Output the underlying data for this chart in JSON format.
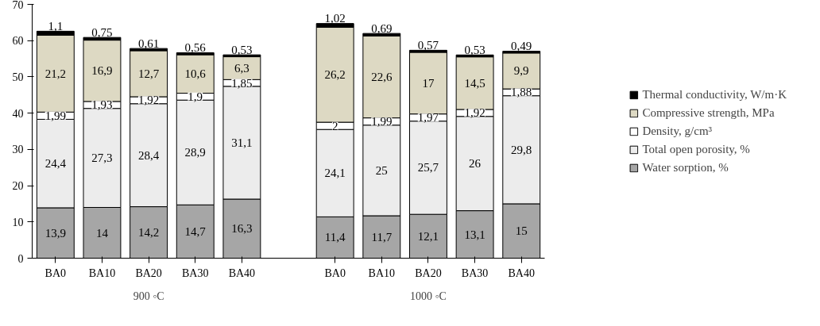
{
  "chart_data": {
    "type": "bar",
    "stacked": true,
    "legend": "right",
    "grid": false,
    "categories": [
      "BA0",
      "BA10",
      "BA20",
      "BA30",
      "BA40",
      null,
      "BA0",
      "BA10",
      "BA20",
      "BA30",
      "BA40"
    ],
    "series": [
      {
        "name": "Water sorption, %",
        "color": "#a6a6a6",
        "values": [
          13.9,
          14,
          14.2,
          14.7,
          16.3,
          null,
          11.4,
          11.7,
          12.1,
          13.1,
          15
        ],
        "value_labels": [
          "13,9",
          "14",
          "14,2",
          "14,7",
          "16,3",
          null,
          "11,4",
          "11,7",
          "12,1",
          "13,1",
          "15"
        ]
      },
      {
        "name": "Total open porosity, %",
        "color": "#ececec",
        "values": [
          24.4,
          27.3,
          28.4,
          28.9,
          31.1,
          null,
          24.1,
          25,
          25.7,
          26,
          29.8
        ],
        "value_labels": [
          "24,4",
          "27,3",
          "28,4",
          "28,9",
          "31,1",
          null,
          "24,1",
          "25",
          "25,7",
          "26",
          "29,8"
        ]
      },
      {
        "name": "Density, g/cm³",
        "color": "#ffffff",
        "values": [
          1.99,
          1.93,
          1.92,
          1.9,
          1.85,
          null,
          2,
          1.99,
          1.97,
          1.92,
          1.88
        ],
        "value_labels": [
          "1,99",
          "1,93",
          "1,92",
          "1,9",
          "1,85",
          null,
          "2",
          "1,99",
          "1,97",
          "1,92",
          "1,88"
        ]
      },
      {
        "name": "Compressive strength, MPa",
        "color": "#ddd9c3",
        "values": [
          21.2,
          16.9,
          12.7,
          10.6,
          6.3,
          null,
          26.2,
          22.6,
          17,
          14.5,
          9.9
        ],
        "value_labels": [
          "21,2",
          "16,9",
          "12,7",
          "10,6",
          "6,3",
          null,
          "26,2",
          "22,6",
          "17",
          "14,5",
          "9,9"
        ]
      },
      {
        "name": "Thermal conductivity, W/m·K",
        "color": "#000000",
        "values": [
          1.1,
          0.75,
          0.61,
          0.56,
          0.53,
          null,
          1.02,
          0.69,
          0.57,
          0.53,
          0.49
        ],
        "value_labels": [
          "1,1",
          "0,75",
          "0,61",
          "0,56",
          "0,53",
          null,
          "1,02",
          "0,69",
          "0,57",
          "0,53",
          "0,49"
        ]
      }
    ],
    "ylim": [
      0,
      70
    ],
    "yticks": [
      0,
      10,
      20,
      30,
      40,
      50,
      60,
      70
    ],
    "annotations": [
      "900 ◦C",
      "1000 ◦C"
    ]
  }
}
